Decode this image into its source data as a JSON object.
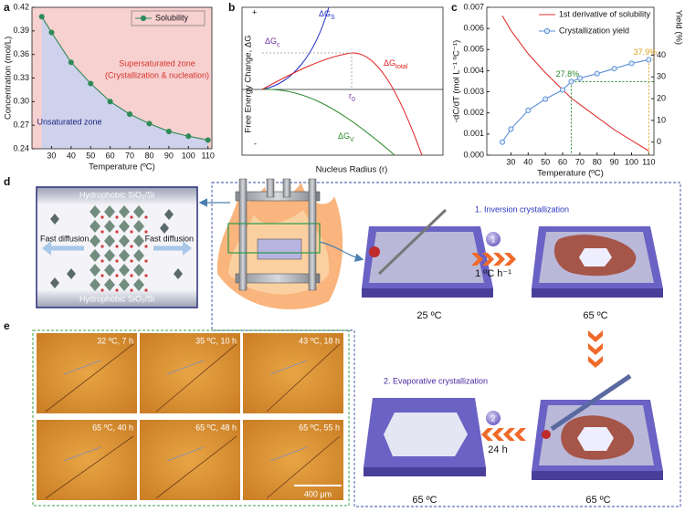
{
  "chart_data": [
    {
      "type": "line",
      "panel_label": "a",
      "x_label": "Temperature (ºC)",
      "y_label": "Concentration (mol/L)",
      "x": [
        25,
        30,
        40,
        50,
        60,
        70,
        80,
        90,
        100,
        110
      ],
      "series": [
        {
          "name": "Solubility",
          "color": "#2e8b57",
          "markers": true,
          "values": [
            0.408,
            0.388,
            0.35,
            0.323,
            0.3,
            0.284,
            0.272,
            0.262,
            0.256,
            0.251
          ]
        }
      ],
      "xlim": [
        20,
        112
      ],
      "xticks": [
        30,
        40,
        50,
        60,
        70,
        80,
        90,
        100,
        110
      ],
      "ylim": [
        0.24,
        0.42
      ],
      "yticks": [
        0.24,
        0.27,
        {
          "value": 0.3,
          "label": "0.30"
        },
        0.33,
        0.36,
        0.39,
        0.42
      ],
      "fill_above": "#f7d0d0",
      "fill_below": "#cfd2ec",
      "legend": "upper right",
      "annotations": [
        {
          "text": "Supersaturated zone",
          "color": "#d8342b"
        },
        {
          "text": "(Crystallization & nucleation)",
          "color": "#d8342b"
        },
        {
          "text": "Unsaturated zone",
          "color": "#1a237e"
        }
      ]
    },
    {
      "type": "line",
      "panel_label": "c",
      "x_label": "Temperature (ºC)",
      "y_label": "-dC/dT (mol L⁻¹ ºC⁻¹)",
      "y2_label": "Yield (%)",
      "x": [
        25,
        30,
        40,
        50,
        60,
        65,
        70,
        80,
        90,
        100,
        110
      ],
      "series": [
        {
          "name": "1st derivative of solubility",
          "color": "#e03030",
          "markers": false,
          "values": [
            0.0066,
            0.0059,
            0.0048,
            0.0039,
            0.0031,
            0.0027,
            0.0024,
            0.0018,
            0.0012,
            0.0007,
            0.0002
          ]
        },
        {
          "name": "Crystallization yield",
          "color": "#5b8fd6",
          "axis": "y2",
          "markers": true,
          "values": [
            0,
            6,
            14.6,
            19.8,
            24,
            27.8,
            29.4,
            31.5,
            33.8,
            36.2,
            37.9
          ],
          "value_labels": [
            null,
            null,
            null,
            null,
            null,
            "27.8%",
            null,
            null,
            null,
            null,
            "37.9%"
          ],
          "value_label_colors": [
            null,
            null,
            null,
            null,
            null,
            "#2a8a2a",
            null,
            null,
            null,
            null,
            "#e0a020"
          ]
        }
      ],
      "xlim": [
        16,
        113
      ],
      "xticks": [
        30,
        40,
        50,
        60,
        70,
        80,
        90,
        100,
        110
      ],
      "ylim": [
        0,
        0.007
      ],
      "yticks": [
        {
          "value": 0,
          "label": "0.000"
        },
        {
          "value": 0.001,
          "label": "0.001"
        },
        {
          "value": 0.002,
          "label": "0.002"
        },
        {
          "value": 0.003,
          "label": "0.003"
        },
        {
          "value": 0.004,
          "label": "0.004"
        },
        {
          "value": 0.005,
          "label": "0.005"
        },
        {
          "value": 0.006,
          "label": "0.006"
        },
        {
          "value": 0.007,
          "label": "0.007"
        }
      ],
      "y2lim": [
        -6,
        62
      ],
      "y2ticks": [
        0,
        10,
        20,
        30,
        40
      ],
      "legend": "upper right"
    }
  ],
  "panel_b": {
    "panel_label": "b",
    "y_label": "Free Energy Change, ΔG",
    "x_label": "Nucleus Radius (r)",
    "plus": "+",
    "minus": "-",
    "surface": {
      "text": "ΔG",
      "sub": "S"
    },
    "total": {
      "text": "ΔG",
      "sub": "total"
    },
    "volume": {
      "text": "ΔG",
      "sub": "V"
    },
    "critical": {
      "text": "ΔG",
      "sub": "c"
    },
    "radius": {
      "text": "r",
      "sub": "0"
    }
  },
  "panel_d": {
    "panel_label": "d",
    "substrate_top": "Hydrophobic SiO₂/Si",
    "substrate_bottom": "Hydrophobic SiO₂/Si",
    "diffusion_left": "Fast diffusion",
    "diffusion_right": "Fast diffusion",
    "step1": {
      "title": "1. Inversion crystallization",
      "number": "1",
      "rate": "1 ºC h⁻¹",
      "start_temp": "25 ºC",
      "end_temp": "65 ºC"
    },
    "step2": {
      "title": "2. Evaporative crystallization",
      "number": "2",
      "time": "24 h",
      "start_temp": "65 ºC",
      "end_temp": "65 ºC"
    }
  },
  "panel_e": {
    "panel_label": "e",
    "frames": [
      "32 ºC, 7 h",
      "35 ºC, 10 h",
      "43 ºC, 18 h",
      "65 ºC, 40 h",
      "65 ºC, 48 h",
      "65 ºC, 55 h"
    ],
    "scale_bar": "400 μm"
  }
}
